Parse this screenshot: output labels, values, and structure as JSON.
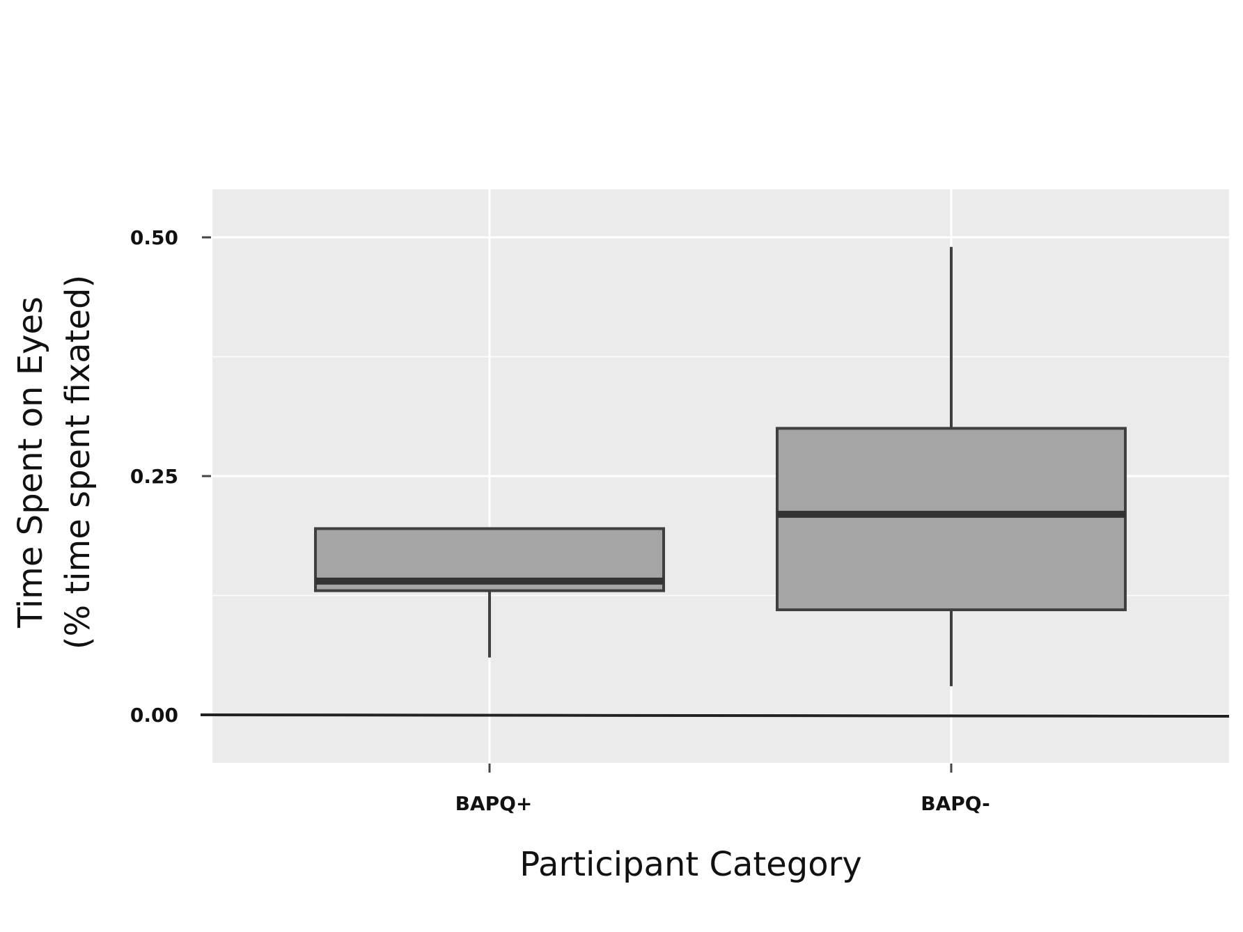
{
  "chart_data": {
    "type": "boxplot",
    "title": "",
    "xlabel": "Participant Category",
    "ylabel": "Time Spent on Eyes",
    "ylabel_sub": "(% time spent fixated)",
    "categories": [
      "BAPQ+",
      "BAPQ-"
    ],
    "ylim": [
      -0.05,
      0.55
    ],
    "y_ticks": [
      {
        "value": 0.0,
        "label": "0.00"
      },
      {
        "value": 0.25,
        "label": "0.25"
      },
      {
        "value": 0.5,
        "label": "0.50"
      }
    ],
    "boxes": [
      {
        "category": "BAPQ+",
        "whisker_low": 0.06,
        "q1": 0.13,
        "median": 0.14,
        "q3": 0.195,
        "whisker_high": 0.195
      },
      {
        "category": "BAPQ-",
        "whisker_low": 0.03,
        "q1": 0.11,
        "median": 0.21,
        "q3": 0.3,
        "whisker_high": 0.49
      }
    ],
    "grid": true,
    "colors": {
      "panel": "#ebebeb",
      "grid": "#ffffff",
      "box_fill": "#a5a5a5",
      "box_stroke": "#3f3f3f",
      "median": "#333333",
      "zero_line": "#222222"
    }
  }
}
